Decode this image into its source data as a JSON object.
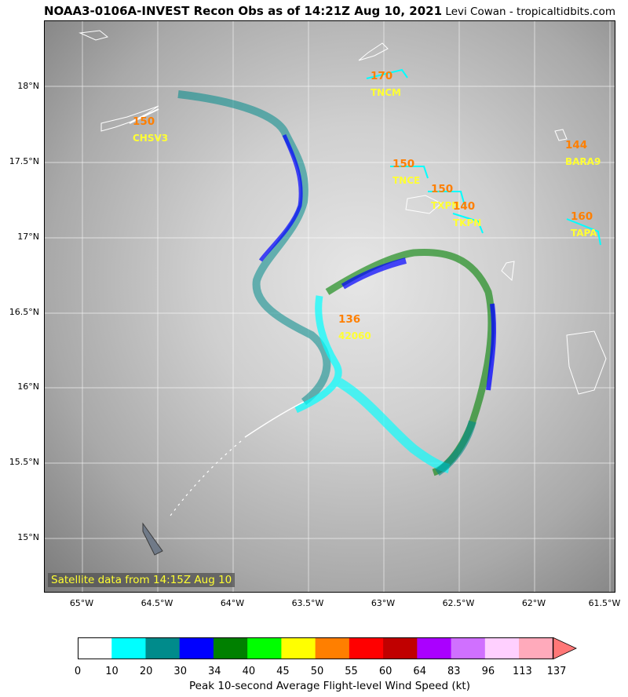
{
  "header": {
    "title": "NOAA3-0106A-INVEST Recon Obs as of 14:21Z Aug 10, 2021",
    "credit": "Levi Cowan - tropicaltidbits.com"
  },
  "map": {
    "satellite_note": "Satellite data from 14:15Z Aug 10",
    "lat_labels": [
      "18°N",
      "17.5°N",
      "17°N",
      "16.5°N",
      "16°N",
      "15.5°N",
      "15°N"
    ],
    "lon_labels": [
      "65°W",
      "64.5°W",
      "64°W",
      "63.5°W",
      "63°W",
      "62.5°W",
      "62°W",
      "61.5°W"
    ],
    "stations": [
      {
        "id": "CHSV3",
        "value": "150"
      },
      {
        "id": "TNCM",
        "value": "170"
      },
      {
        "id": "TNCE",
        "value": "150"
      },
      {
        "id": "TXPN",
        "value": "150"
      },
      {
        "id": "TKPN",
        "value": "140"
      },
      {
        "id": "BARA9",
        "value": "144"
      },
      {
        "id": "TAPA",
        "value": "160"
      },
      {
        "id": "42060",
        "value": "136"
      }
    ]
  },
  "colorbar": {
    "ticks": [
      "0",
      "10",
      "20",
      "30",
      "34",
      "40",
      "45",
      "50",
      "55",
      "60",
      "64",
      "83",
      "96",
      "113",
      "137"
    ],
    "colors": [
      "#ffffff",
      "#00ffff",
      "#008b8b",
      "#0000ff",
      "#008000",
      "#00ff00",
      "#ffff00",
      "#ff7f00",
      "#ff0000",
      "#c00000",
      "#aa00ff",
      "#d070ff",
      "#ffd0ff",
      "#ffaabb"
    ],
    "label": "Peak 10-second Average Flight-level Wind Speed (kt)"
  }
}
